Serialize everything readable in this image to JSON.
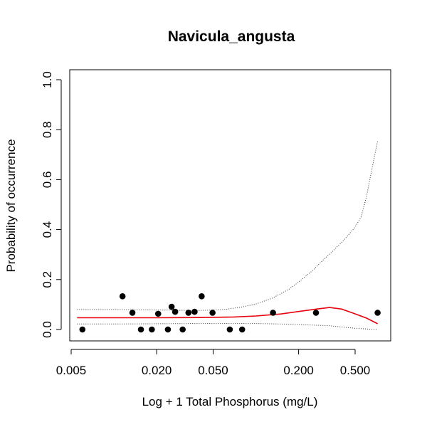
{
  "chart_data": {
    "type": "scatter",
    "title": "Navicula_angusta",
    "xlabel": "Log + 1 Total Phosphorus (mg/L)",
    "ylabel": "Probability of occurrence",
    "x_scale": "log",
    "xlim": [
      0.005,
      0.8
    ],
    "ylim": [
      0,
      1.0
    ],
    "x_ticks": [
      0.005,
      0.02,
      0.05,
      0.2,
      0.5
    ],
    "x_tick_labels": [
      "0.005",
      "0.020",
      "0.050",
      "0.200",
      "0.500"
    ],
    "y_ticks": [
      0.0,
      0.2,
      0.4,
      0.6,
      0.8,
      1.0
    ],
    "y_tick_labels": [
      "0.0",
      "0.2",
      "0.4",
      "0.6",
      "0.8",
      "1.0"
    ],
    "grid": false,
    "points": [
      {
        "x": 0.006,
        "y": 0.0
      },
      {
        "x": 0.0115,
        "y": 0.133
      },
      {
        "x": 0.0135,
        "y": 0.067
      },
      {
        "x": 0.0155,
        "y": 0.0
      },
      {
        "x": 0.0185,
        "y": 0.0
      },
      {
        "x": 0.0205,
        "y": 0.063
      },
      {
        "x": 0.024,
        "y": 0.0
      },
      {
        "x": 0.0255,
        "y": 0.091
      },
      {
        "x": 0.027,
        "y": 0.071
      },
      {
        "x": 0.0305,
        "y": 0.0
      },
      {
        "x": 0.0335,
        "y": 0.067
      },
      {
        "x": 0.037,
        "y": 0.071
      },
      {
        "x": 0.0415,
        "y": 0.133
      },
      {
        "x": 0.0495,
        "y": 0.067
      },
      {
        "x": 0.0655,
        "y": 0.0
      },
      {
        "x": 0.08,
        "y": 0.0
      },
      {
        "x": 0.132,
        "y": 0.067
      },
      {
        "x": 0.265,
        "y": 0.067
      },
      {
        "x": 0.72,
        "y": 0.067
      }
    ],
    "series": [
      {
        "style": "solid",
        "color": "#e8000d",
        "x": [
          0.0055,
          0.01,
          0.02,
          0.04,
          0.07,
          0.1,
          0.15,
          0.2,
          0.27,
          0.33,
          0.4,
          0.48,
          0.6,
          0.72
        ],
        "y": [
          0.047,
          0.047,
          0.047,
          0.048,
          0.05,
          0.054,
          0.062,
          0.072,
          0.082,
          0.088,
          0.082,
          0.066,
          0.046,
          0.023
        ]
      },
      {
        "style": "dotted",
        "color": "#333333",
        "x": [
          0.0055,
          0.01,
          0.02,
          0.04,
          0.06,
          0.08,
          0.1,
          0.13,
          0.17,
          0.2,
          0.25,
          0.3,
          0.35,
          0.42,
          0.5,
          0.55,
          0.6,
          0.65,
          0.72
        ],
        "y": [
          0.08,
          0.08,
          0.078,
          0.076,
          0.08,
          0.09,
          0.102,
          0.125,
          0.16,
          0.19,
          0.235,
          0.28,
          0.315,
          0.36,
          0.41,
          0.45,
          0.53,
          0.63,
          0.755
        ]
      },
      {
        "style": "dotted",
        "color": "#333333",
        "x": [
          0.0055,
          0.01,
          0.02,
          0.04,
          0.07,
          0.1,
          0.15,
          0.2,
          0.27,
          0.33,
          0.4,
          0.5,
          0.6,
          0.72
        ],
        "y": [
          0.022,
          0.022,
          0.023,
          0.024,
          0.024,
          0.024,
          0.022,
          0.02,
          0.017,
          0.015,
          0.01,
          0.005,
          0.002,
          0.0
        ]
      }
    ],
    "colors": {
      "points": "#000000",
      "frame": "#000000"
    }
  }
}
